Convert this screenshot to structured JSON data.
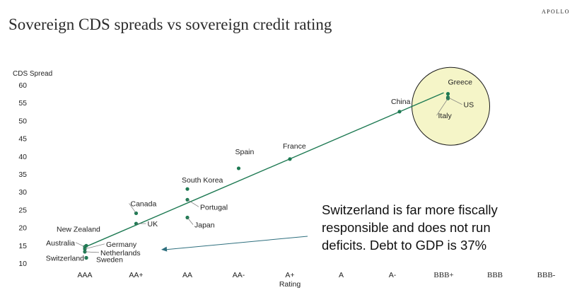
{
  "header": {
    "title": "Sovereign CDS spreads vs sovereign credit rating",
    "brand": "APOLLO"
  },
  "colors": {
    "points": "#1e7a53",
    "trend": "#1e7a53",
    "highlight_fill": "#f5f5c8",
    "arrow": "#2e6f7e",
    "text": "#222222"
  },
  "chart_data": {
    "type": "scatter",
    "title": "Sovereign CDS spreads vs sovereign credit rating",
    "xlabel": "Rating",
    "ylabel": "CDS Spread",
    "categories": [
      "AAA",
      "AA+",
      "AA",
      "AA-",
      "A+",
      "A",
      "A-",
      "BBB+",
      "BBB",
      "BBB-"
    ],
    "ylim": [
      10,
      60
    ],
    "yticks": [
      10,
      15,
      20,
      25,
      30,
      35,
      40,
      45,
      50,
      55,
      60
    ],
    "grid": false,
    "points": [
      {
        "label": "Switzerland",
        "x": "AAA",
        "y": 11.5
      },
      {
        "label": "Sweden",
        "x": "AAA",
        "y": 11.5
      },
      {
        "label": "Netherlands",
        "x": "AAA",
        "y": 13.2
      },
      {
        "label": "Germany",
        "x": "AAA",
        "y": 14.0
      },
      {
        "label": "Australia",
        "x": "AAA",
        "y": 14.6
      },
      {
        "label": "New Zealand",
        "x": "AAA",
        "y": 14.9
      },
      {
        "label": "Canada",
        "x": "AA+",
        "y": 24.0
      },
      {
        "label": "UK",
        "x": "AA+",
        "y": 21.1
      },
      {
        "label": "South Korea",
        "x": "AA",
        "y": 30.8
      },
      {
        "label": "Portugal",
        "x": "AA",
        "y": 27.8
      },
      {
        "label": "Japan",
        "x": "AA",
        "y": 22.8
      },
      {
        "label": "Spain",
        "x": "AA-",
        "y": 36.6
      },
      {
        "label": "France",
        "x": "A+",
        "y": 39.2
      },
      {
        "label": "China",
        "x": "A-",
        "y": 52.5
      },
      {
        "label": "Greece",
        "x": "BBB+",
        "y": 57.5
      },
      {
        "label": "US",
        "x": "BBB+",
        "y": 56.5
      },
      {
        "label": "Italy",
        "x": "BBB+",
        "y": 56.2
      }
    ],
    "trendline": {
      "x": [
        "AAA",
        "BBB+"
      ],
      "y": [
        14.5,
        57.8
      ]
    },
    "highlight": {
      "x": "BBB+",
      "y": 54
    },
    "annotation": {
      "lines": [
        "Switzerland is far more fiscally",
        "responsible and does not run",
        "deficits. Debt to GDP is 37%"
      ],
      "arrow_target": {
        "x": "AAA",
        "y": 14.2
      }
    }
  }
}
